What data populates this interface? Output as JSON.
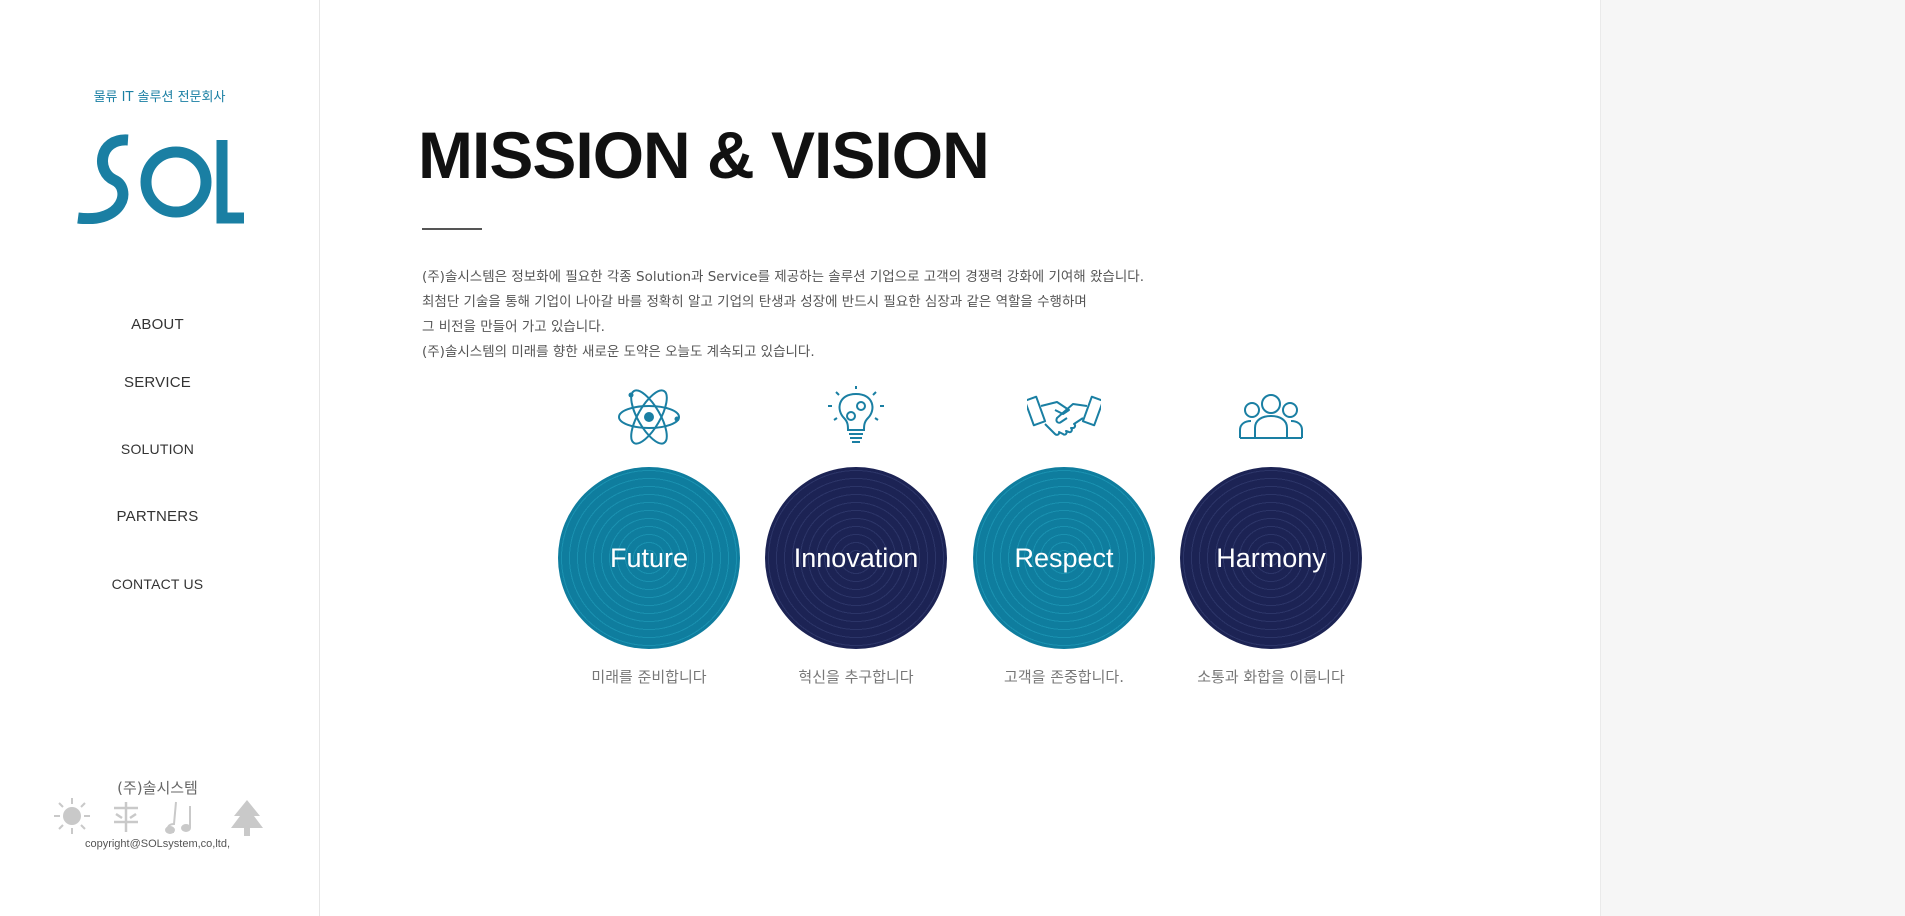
{
  "sidebar": {
    "tagline": "물류 IT 솔루션 전문회사",
    "logo_text": "SOL",
    "nav": [
      {
        "label": "ABOUT"
      },
      {
        "label": "SERVICE"
      },
      {
        "label": "SOLUTION"
      },
      {
        "label": "PARTNERS"
      },
      {
        "label": "CONTACT US"
      }
    ],
    "company_name": "(주)솔시스템",
    "copyright": "copyright@SOLsystem,co,ltd,"
  },
  "main": {
    "title": "MISSION & VISION",
    "paragraphs": [
      "(주)솔시스템은 정보화에 필요한 각종 Solution과 Service를 제공하는 솔루션 기업으로 고객의 경쟁력 강화에 기여해 왔습니다.",
      "최첨단 기술을 통해 기업이 나아갈 바를 정확히 알고 기업의 탄생과 성장에 반드시 필요한 심장과 같은 역할을 수행하며",
      "그 비전을 만들어 가고 있습니다.",
      "(주)솔시스템의 미래를 향한 새로운 도약은 오늘도 계속되고 있습니다."
    ],
    "values": [
      {
        "name": "Future",
        "caption": "미래를 준비합니다",
        "icon": "atom-icon",
        "color": "#0f7d9e"
      },
      {
        "name": "Innovation",
        "caption": "혁신을 추구합니다",
        "icon": "lightbulb-gears-icon",
        "color": "#1c2354"
      },
      {
        "name": "Respect",
        "caption": "고객을 존중합니다.",
        "icon": "handshake-icon",
        "color": "#0f7d9e"
      },
      {
        "name": "Harmony",
        "caption": "소통과 화합을 이룹니다",
        "icon": "people-group-icon",
        "color": "#1c2354"
      }
    ]
  },
  "colors": {
    "accent": "#1a7fa3",
    "teal": "#0f7d9e",
    "navy": "#1c2354"
  }
}
